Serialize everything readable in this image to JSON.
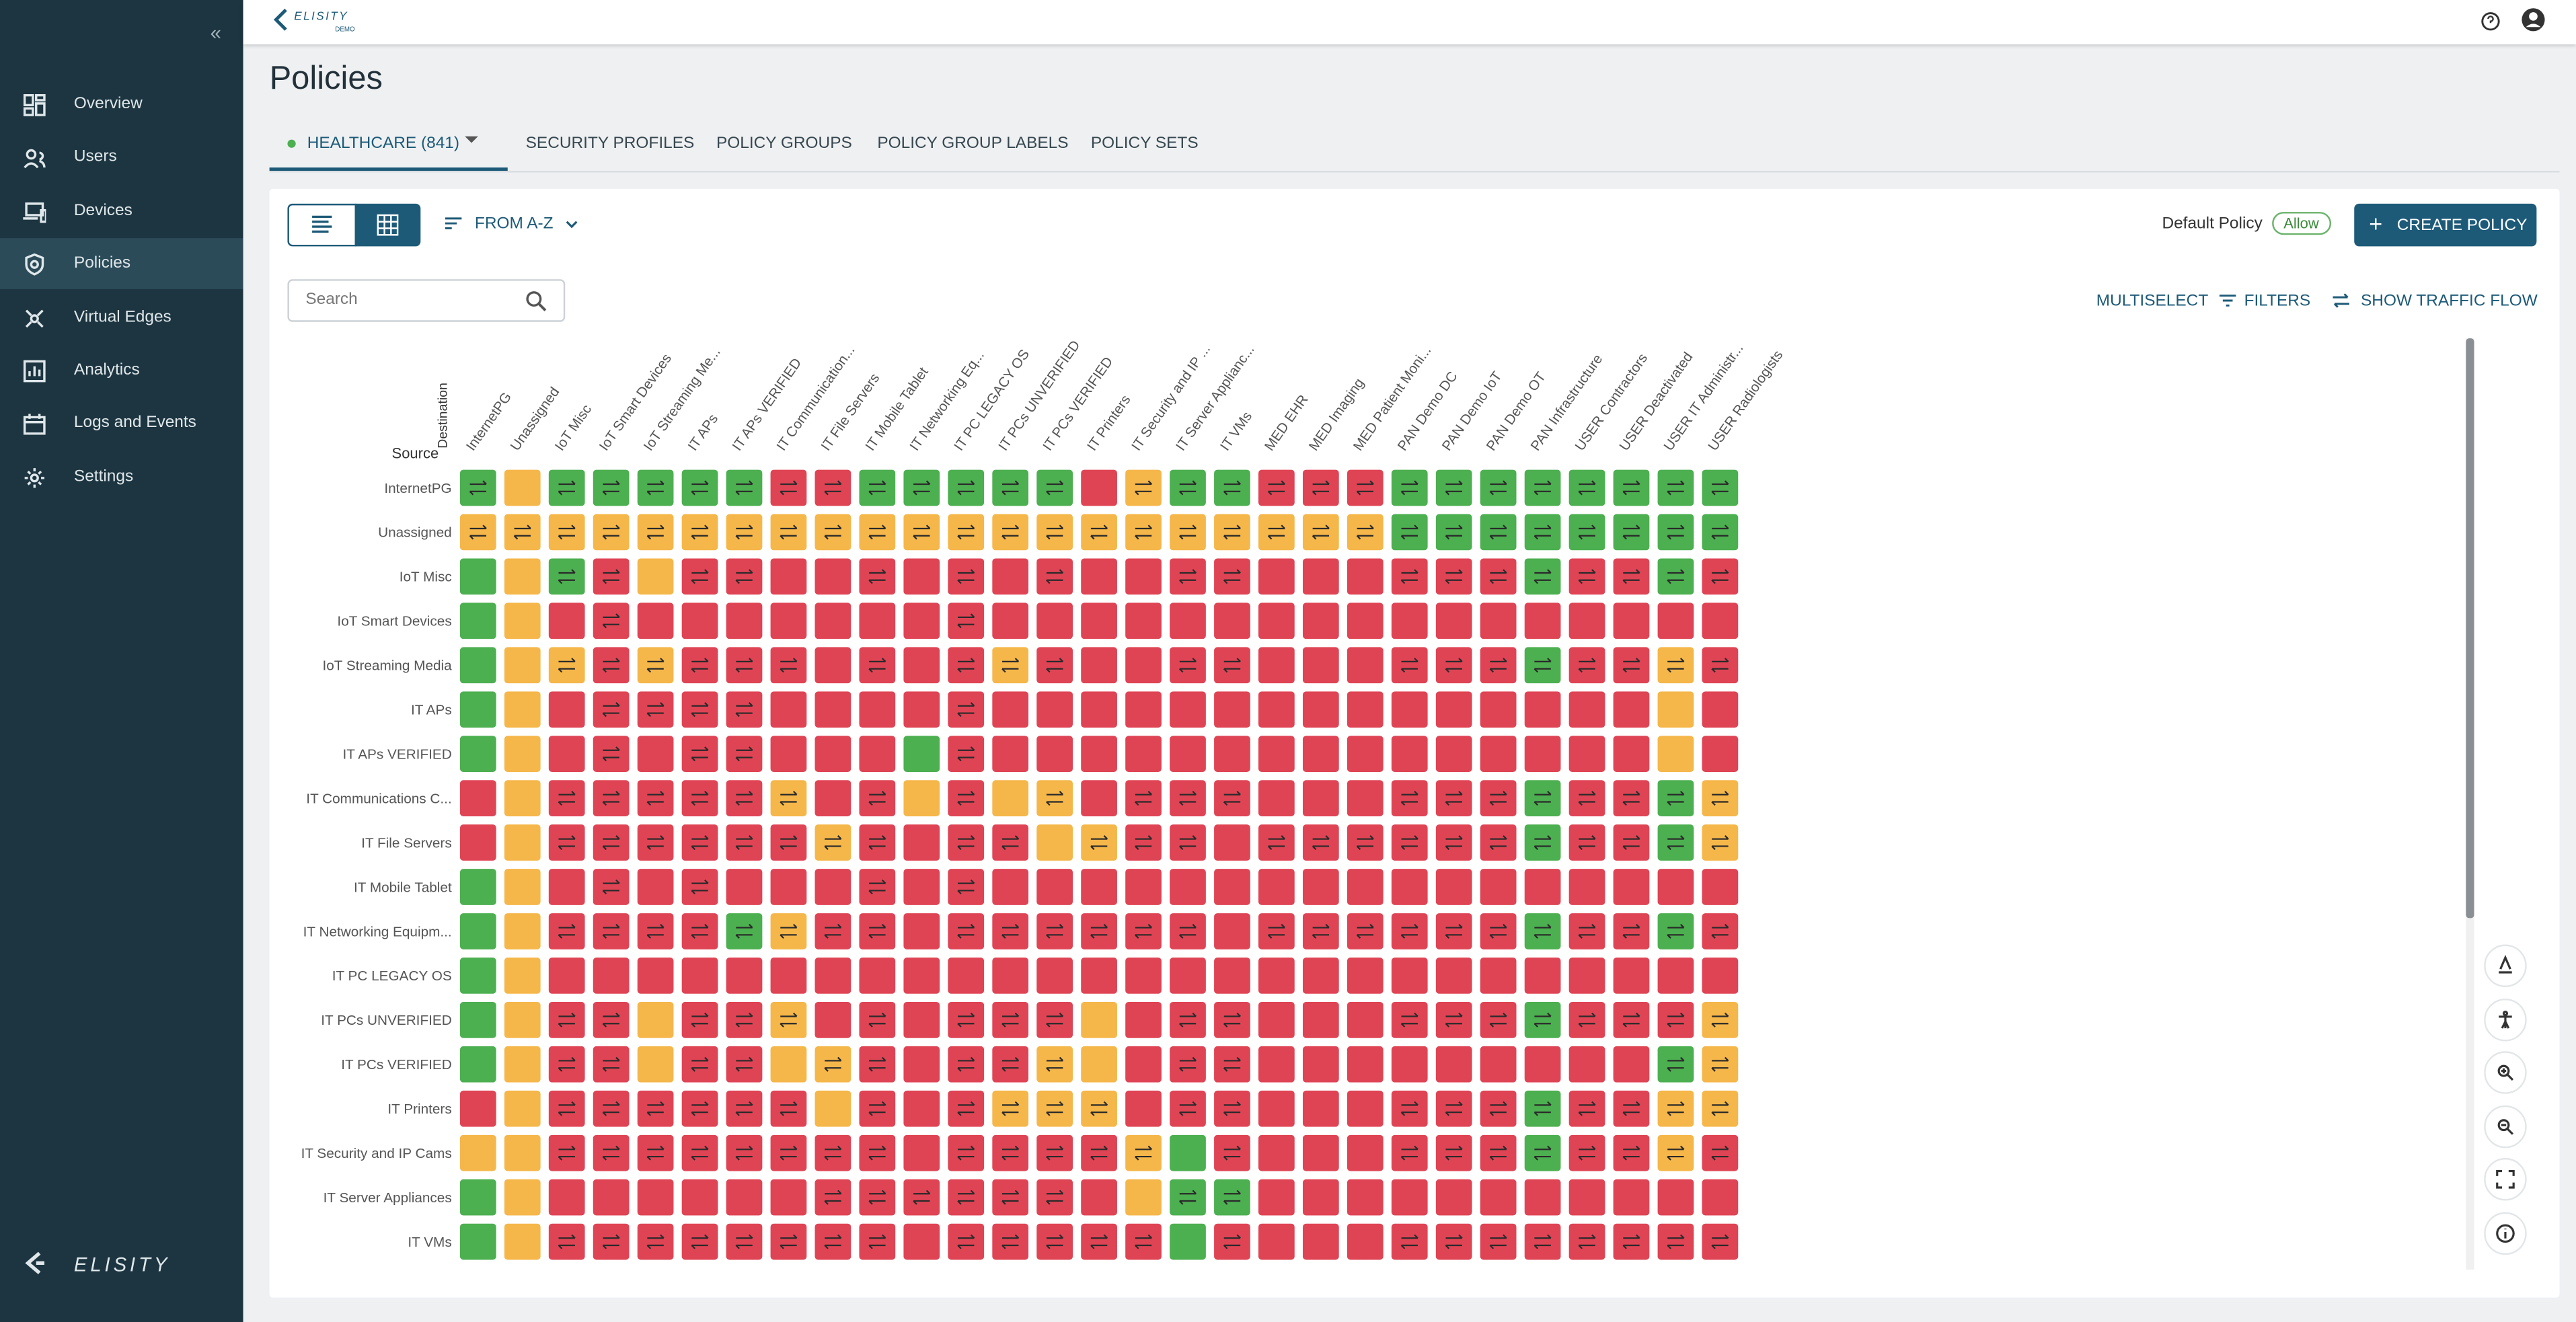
{
  "header": {
    "logo": "ELISITY",
    "logo_sub": "DEMO"
  },
  "sidebar": {
    "items": [
      "Overview",
      "Users",
      "Devices",
      "Policies",
      "Virtual Edges",
      "Analytics",
      "Logs and Events",
      "Settings"
    ],
    "active": 3,
    "brand": "ELISITY"
  },
  "page": {
    "title": "Policies",
    "tabs": [
      "HEALTHCARE (841)",
      "SECURITY PROFILES",
      "POLICY GROUPS",
      "POLICY GROUP LABELS",
      "POLICY SETS"
    ],
    "active_tab": 0
  },
  "toolbar": {
    "sort": "FROM A-Z",
    "default_policy_label": "Default Policy",
    "default_policy_value": "Allow",
    "create": "CREATE POLICY",
    "search_placeholder": "Search",
    "actions": [
      "MULTISELECT",
      "FILTERS",
      "SHOW TRAFFIC FLOW"
    ]
  },
  "matrix": {
    "destination_label": "Destination",
    "source_label": "Source",
    "columns": [
      "InternetPG",
      "Unassigned",
      "IoT Misc",
      "IoT Smart Devices",
      "IoT Streaming Me...",
      "IT APs",
      "IT APs VERIFIED",
      "IT Communication...",
      "IT File Servers",
      "IT Mobile Tablet",
      "IT Networking Eq...",
      "IT PC LEGACY OS",
      "IT PCs UNVERIFIED",
      "IT PCs VERIFIED",
      "IT Printers",
      "IT Security and IP ...",
      "IT Server Applianc...",
      "IT VMs",
      "MED EHR",
      "MED Imaging",
      "MED Patient Moni...",
      "PAN Demo DC",
      "PAN Demo IoT",
      "PAN Demo OT",
      "PAN Infrastructure",
      "USER Contractors",
      "USER Deactivated",
      "USER IT Administr...",
      "USER Radiologists"
    ],
    "rows": [
      {
        "label": "InternetPG",
        "cells": "gYgggggrrgggggRyggrrrgggggggg"
      },
      {
        "label": "Unassigned",
        "cells": "yyyyyyyyyyyyyyyyyyyyygggggggg"
      },
      {
        "label": "IoT Misc",
        "cells": "GYgrYrrRRrRrRrRRrrRRRrrrgrrgr"
      },
      {
        "label": "IoT Smart Devices",
        "cells": "GYRrRRRRRRRrRRRRRRRRRRRRRRRRR"
      },
      {
        "label": "IoT Streaming Media",
        "cells": "GYyryrrrRrRryrRRrrRRRrrrgrryr"
      },
      {
        "label": "IT APs",
        "cells": "GYRrrrrRRRRrRRRRRRRRRRRRRRRYR"
      },
      {
        "label": "IT APs VERIFIED",
        "cells": "GYRrRrrRRRGrRRRRRRRRRRRRRRRYR"
      },
      {
        "label": "IT Communications C...",
        "cells": "RYrrrrryRrYrYyRrrrRRRrrrgrrgy"
      },
      {
        "label": "IT File Servers",
        "cells": "RYrrrrrryrRrrYyrrRrrrrrrgrrgy"
      },
      {
        "label": "IT Mobile Tablet",
        "cells": "GYRrRrRRRrRrRRRRRRRRRRRRRRRRR"
      },
      {
        "label": "IT Networking Equipm...",
        "cells": "GYrrrrgyrrRrrrrrrRrrrrrrgrrgr"
      },
      {
        "label": "IT PC LEGACY OS",
        "cells": "GYRRRRRRRRRRRRRRRRRRRRRRRRRRR"
      },
      {
        "label": "IT PCs UNVERIFIED",
        "cells": "GYrrYrryRrRrrrYRrrRRRrrrgrrry"
      },
      {
        "label": "IT PCs VERIFIED",
        "cells": "GYrrYrrYyrRrryYRrrRRRRRRRRRgy"
      },
      {
        "label": "IT Printers",
        "cells": "RYrrrrrrYrRryyyRrrRRRrrrgrryy"
      },
      {
        "label": "IT Security and IP Cams",
        "cells": "YYrrrrrrrrRrrrryGrRRRrrrgrryr"
      },
      {
        "label": "IT Server Appliances",
        "cells": "GYRRRRRRrrrrrrRYggRRRRRRRRRRR"
      },
      {
        "label": "IT VMs",
        "cells": "GYrrrrrrrrRrrrrrGrRRRrrrrrrrr"
      }
    ]
  }
}
